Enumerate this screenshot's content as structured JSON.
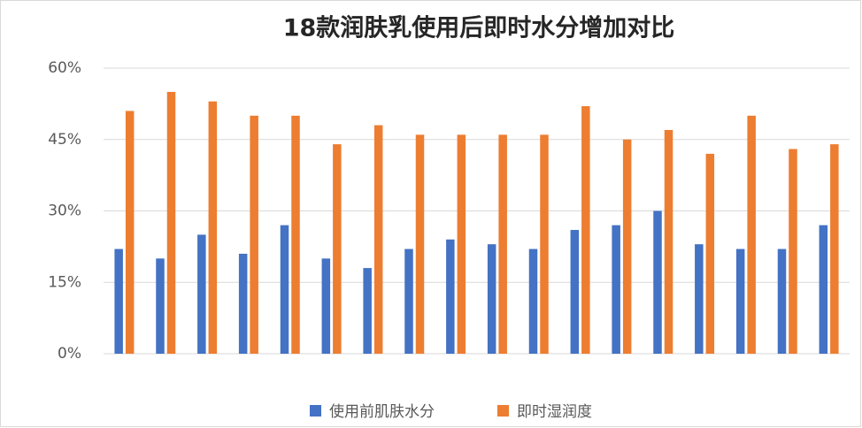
{
  "chart_data": {
    "type": "bar",
    "title": "18款润肤乳使用后即时水分增加对比",
    "categories": [
      null,
      null,
      null,
      null,
      null,
      null,
      null,
      null,
      null,
      null,
      null,
      null,
      null,
      null,
      null,
      null,
      null,
      null
    ],
    "series": [
      {
        "name": "使用前肌肤水分",
        "color": "#4472c4",
        "values": [
          22,
          20,
          25,
          21,
          27,
          20,
          18,
          22,
          24,
          23,
          22,
          26,
          27,
          30,
          23,
          22,
          22,
          27
        ]
      },
      {
        "name": "即时湿润度",
        "color": "#ed7d31",
        "values": [
          51,
          55,
          53,
          50,
          50,
          44,
          48,
          46,
          46,
          46,
          46,
          52,
          45,
          47,
          42,
          50,
          43,
          44
        ]
      }
    ],
    "ylim": [
      0,
      60
    ],
    "yticks": [
      {
        "value": 0,
        "label": "0%"
      },
      {
        "value": 15,
        "label": "15%"
      },
      {
        "value": 30,
        "label": "30%"
      },
      {
        "value": 45,
        "label": "45%"
      },
      {
        "value": 60,
        "label": "60%"
      }
    ],
    "grid": true,
    "legend": "bottom"
  }
}
